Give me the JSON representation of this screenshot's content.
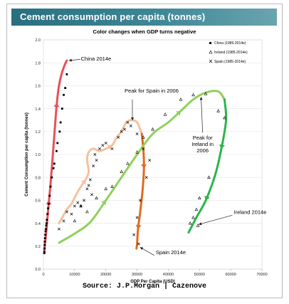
{
  "header": {
    "title": "Cement consumption per capita (tonnes)",
    "subtitle": "Color changes when GDP turns negative"
  },
  "footer": {
    "source": "Source: J.P.Morgan  |  Cazenove"
  },
  "chart_data": {
    "type": "scatter",
    "title": "Cement consumption per capita (tonnes)",
    "subtitle": "Color changes when GDP turns negative",
    "xlabel": "GDP Per Capita (USD)",
    "ylabel": "Cement Consumption per capita (tonnes)",
    "xlim": [
      0,
      70000
    ],
    "ylim": [
      0,
      2.0
    ],
    "xticks": [
      0,
      10000,
      20000,
      30000,
      40000,
      50000,
      60000,
      70000
    ],
    "yticks": [
      0,
      0.2,
      0.4,
      0.6,
      0.8,
      1.0,
      1.2,
      1.4,
      1.6,
      1.8,
      2.0
    ],
    "legend_position": "top-right",
    "series": [
      {
        "name": "China (1985-2014e)",
        "marker": "square",
        "color": "#000000",
        "points": [
          [
            300,
            0.14
          ],
          [
            350,
            0.15
          ],
          [
            400,
            0.18
          ],
          [
            420,
            0.21
          ],
          [
            460,
            0.24
          ],
          [
            520,
            0.27
          ],
          [
            600,
            0.3
          ],
          [
            700,
            0.33
          ],
          [
            800,
            0.35
          ],
          [
            900,
            0.38
          ],
          [
            1000,
            0.4
          ],
          [
            1100,
            0.43
          ],
          [
            1300,
            0.48
          ],
          [
            1500,
            0.53
          ],
          [
            1700,
            0.57
          ],
          [
            2000,
            0.64
          ],
          [
            2300,
            0.72
          ],
          [
            2700,
            0.8
          ],
          [
            3200,
            0.88
          ],
          [
            3500,
            0.92
          ],
          [
            4200,
            1.03
          ],
          [
            4500,
            1.1
          ],
          [
            5200,
            1.2
          ],
          [
            5500,
            1.28
          ],
          [
            6000,
            1.4
          ],
          [
            6500,
            1.52
          ],
          [
            7000,
            1.58
          ],
          [
            7500,
            1.7
          ]
        ]
      },
      {
        "name": "Ireland (1985-2014e)",
        "marker": "triangle",
        "color": "#000000",
        "points": [
          [
            10000,
            0.42
          ],
          [
            12000,
            0.55
          ],
          [
            14000,
            0.5
          ],
          [
            17000,
            0.62
          ],
          [
            20000,
            0.7
          ],
          [
            22000,
            0.72
          ],
          [
            25000,
            0.85
          ],
          [
            27000,
            0.92
          ],
          [
            30000,
            1.02
          ],
          [
            32000,
            1.15
          ],
          [
            35000,
            1.22
          ],
          [
            39000,
            1.35
          ],
          [
            44000,
            1.48
          ],
          [
            48000,
            1.52
          ],
          [
            52000,
            1.53
          ],
          [
            56000,
            1.38
          ],
          [
            58000,
            1.32
          ],
          [
            53000,
            0.8
          ],
          [
            50000,
            0.62
          ],
          [
            49000,
            0.52
          ],
          [
            48000,
            0.45
          ],
          [
            47000,
            0.4
          ],
          [
            49500,
            0.38
          ]
        ]
      },
      {
        "name": "Spain (1985-2014e)",
        "marker": "x",
        "color": "#000000",
        "points": [
          [
            5000,
            0.35
          ],
          [
            6500,
            0.42
          ],
          [
            7500,
            0.5
          ],
          [
            9000,
            0.48
          ],
          [
            10000,
            0.55
          ],
          [
            11000,
            0.58
          ],
          [
            12000,
            0.55
          ],
          [
            13000,
            0.6
          ],
          [
            14000,
            0.7
          ],
          [
            14500,
            0.73
          ],
          [
            15000,
            0.78
          ],
          [
            15500,
            0.65
          ],
          [
            16000,
            0.9
          ],
          [
            16500,
            1.0
          ],
          [
            17000,
            0.95
          ],
          [
            18000,
            1.05
          ],
          [
            19000,
            1.08
          ],
          [
            20000,
            1.1
          ],
          [
            22000,
            1.05
          ],
          [
            24000,
            1.15
          ],
          [
            25000,
            1.2
          ],
          [
            26000,
            1.22
          ],
          [
            27000,
            1.28
          ],
          [
            28000,
            1.25
          ],
          [
            30000,
            1.18
          ],
          [
            32000,
            1.05
          ],
          [
            34000,
            0.95
          ],
          [
            33000,
            0.8
          ],
          [
            31000,
            0.6
          ],
          [
            30000,
            0.45
          ],
          [
            29000,
            0.3
          ],
          [
            30500,
            0.22
          ]
        ]
      }
    ],
    "trend_lines": [
      {
        "label": "China",
        "color": "#ea4f57",
        "points": [
          [
            200,
            0.14
          ],
          [
            400,
            0.2
          ],
          [
            900,
            0.32
          ],
          [
            1300,
            0.45
          ],
          [
            1800,
            0.6
          ],
          [
            2300,
            0.75
          ],
          [
            2800,
            0.92
          ],
          [
            3300,
            1.1
          ],
          [
            3800,
            1.28
          ],
          [
            4300,
            1.45
          ],
          [
            5000,
            1.6
          ],
          [
            5800,
            1.7
          ],
          [
            6800,
            1.78
          ],
          [
            7500,
            1.82
          ]
        ]
      },
      {
        "label": "Spain",
        "color": "#f5c19e",
        "points": [
          [
            5000,
            0.4
          ],
          [
            7500,
            0.52
          ],
          [
            9000,
            0.57
          ],
          [
            10500,
            0.65
          ],
          [
            12000,
            0.72
          ],
          [
            13500,
            0.78
          ],
          [
            14500,
            0.85
          ],
          [
            14000,
            0.95
          ],
          [
            14500,
            1.02
          ],
          [
            16000,
            1.05
          ],
          [
            18000,
            1.03
          ],
          [
            20000,
            1.05
          ],
          [
            22000,
            1.08
          ],
          [
            23500,
            1.15
          ],
          [
            25000,
            1.2
          ],
          [
            26500,
            1.28
          ],
          [
            28000,
            1.3
          ],
          [
            30000,
            1.28
          ],
          [
            31500,
            1.18
          ]
        ]
      },
      {
        "label": "Spain after GDP turned negative",
        "color": "#e06a22",
        "points": [
          [
            31500,
            1.18
          ],
          [
            32000,
            1.05
          ],
          [
            32200,
            0.88
          ],
          [
            31800,
            0.7
          ],
          [
            31000,
            0.5
          ],
          [
            30300,
            0.35
          ],
          [
            30000,
            0.22
          ],
          [
            29800,
            0.18
          ]
        ]
      },
      {
        "label": "Ireland",
        "color": "#8ed15a",
        "points": [
          [
            5000,
            0.23
          ],
          [
            10000,
            0.31
          ],
          [
            15000,
            0.41
          ],
          [
            20000,
            0.6
          ],
          [
            25000,
            0.8
          ],
          [
            30000,
            1.0
          ],
          [
            35000,
            1.18
          ],
          [
            40000,
            1.28
          ],
          [
            44000,
            1.38
          ],
          [
            48000,
            1.48
          ],
          [
            52000,
            1.54
          ],
          [
            56000,
            1.55
          ],
          [
            58000,
            1.48
          ]
        ]
      },
      {
        "label": "Ireland after GDP turned negative",
        "color": "#2db34b",
        "points": [
          [
            58000,
            1.48
          ],
          [
            58500,
            1.3
          ],
          [
            57000,
            1.05
          ],
          [
            55000,
            0.82
          ],
          [
            52000,
            0.6
          ],
          [
            49000,
            0.45
          ],
          [
            46500,
            0.32
          ]
        ]
      }
    ],
    "annotations": [
      {
        "text": "China 2014e",
        "x": 12000,
        "y": 1.82
      },
      {
        "text": "Peak for Spain in 2006",
        "x": 26000,
        "y": 1.54
      },
      {
        "text": [
          "Peak for",
          "Ireland in",
          "2006"
        ],
        "x": 51000,
        "y": 1.13
      },
      {
        "text": "Ireland 2014e",
        "x": 61000,
        "y": 0.48
      },
      {
        "text": "Spain 2014e",
        "x": 36000,
        "y": 0.13
      }
    ]
  }
}
